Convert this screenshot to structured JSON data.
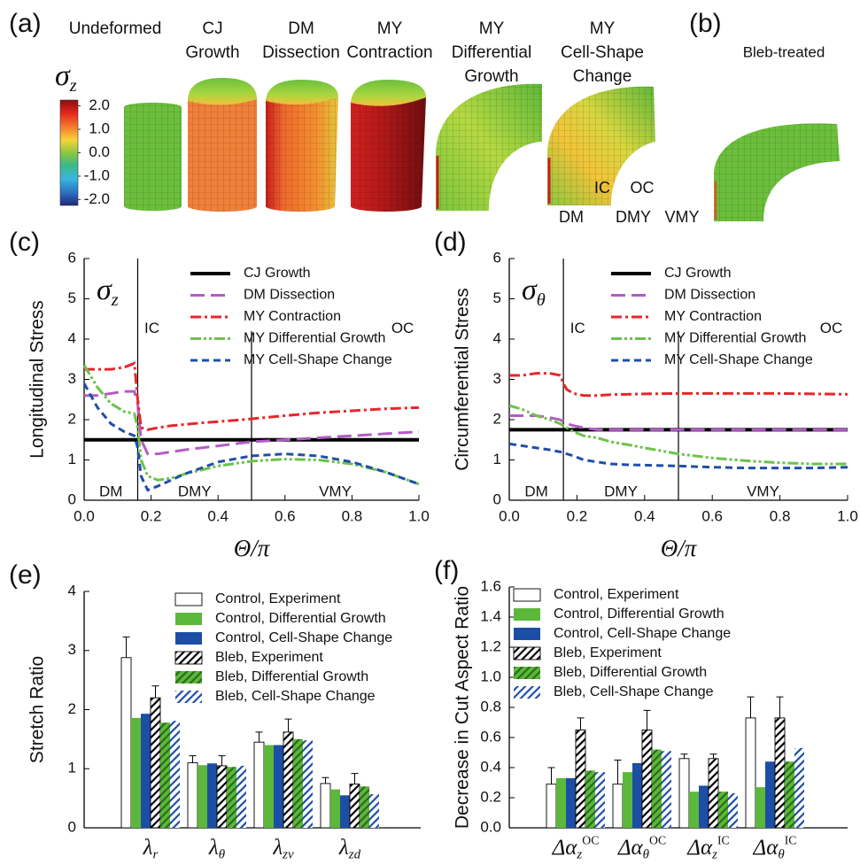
{
  "panel_a": {
    "label": "(a)",
    "columns": [
      {
        "lines": [
          "Undeformed"
        ],
        "color": "#111111"
      },
      {
        "lines": [
          "CJ",
          "Growth"
        ],
        "color": "#111111"
      },
      {
        "lines": [
          "DM",
          "Dissection"
        ],
        "color": "#b25cc4"
      },
      {
        "lines": [
          "MY",
          "Contraction"
        ],
        "color": "#e8262a"
      },
      {
        "lines": [
          "MY",
          "Differential",
          "Growth"
        ],
        "color": "#6cc24a"
      },
      {
        "lines": [
          "MY",
          "Cell-Shape",
          "Change"
        ],
        "color": "#1f4fa8"
      }
    ],
    "colorbar": {
      "symbol": {
        "base": "σ",
        "sub": "z"
      },
      "limits": [
        -2.25,
        2.25
      ],
      "ticks": [
        {
          "value": 2,
          "label": "2.0"
        },
        {
          "value": 1,
          "label": "1.0"
        },
        {
          "value": 0,
          "label": "0.0"
        },
        {
          "value": -1,
          "label": "-1.0"
        },
        {
          "value": -2,
          "label": "-2.0"
        }
      ]
    },
    "annotations": [
      "IC",
      "OC",
      "DM",
      "DMY",
      "VMY"
    ]
  },
  "panel_b": {
    "label": "(b)",
    "title": "Bleb-treated"
  },
  "chart_data": [
    {
      "type": "line",
      "panel_label": "(c)",
      "symbol": {
        "base": "σ",
        "sub": "z"
      },
      "y_label": "Longitudinal Stress",
      "x_label": "Θ/π",
      "xlim": [
        0,
        1
      ],
      "ylim": [
        0,
        6
      ],
      "xticks": [
        {
          "value": 0,
          "label": "0.0"
        },
        {
          "value": 0.2,
          "label": "0.2"
        },
        {
          "value": 0.4,
          "label": "0.4"
        },
        {
          "value": 0.6,
          "label": "0.6"
        },
        {
          "value": 0.8,
          "label": "0.8"
        },
        {
          "value": 1,
          "label": "1.0"
        }
      ],
      "yticks": [
        0,
        1,
        2,
        3,
        4,
        5,
        6
      ],
      "dividers": [
        0.16,
        0.5
      ],
      "annotations": [
        "IC",
        "OC",
        "DM",
        "DMY",
        "VMY"
      ],
      "x": [
        0,
        0.04,
        0.08,
        0.12,
        0.15,
        0.16,
        0.17,
        0.19,
        0.22,
        0.26,
        0.3,
        0.35,
        0.4,
        0.5,
        0.6,
        0.7,
        0.8,
        0.9,
        1.0
      ],
      "series": [
        {
          "name": "CJ Growth",
          "color": "#000000",
          "values": [
            1.5,
            1.5,
            1.5,
            1.5,
            1.5,
            1.5,
            1.5,
            1.5,
            1.5,
            1.5,
            1.5,
            1.5,
            1.5,
            1.5,
            1.5,
            1.5,
            1.5,
            1.5,
            1.5
          ]
        },
        {
          "name": "DM Dissection",
          "color": "#b25cc4",
          "values": [
            2.6,
            2.6,
            2.65,
            2.7,
            2.7,
            2.4,
            1.5,
            1.15,
            1.15,
            1.2,
            1.25,
            1.3,
            1.35,
            1.45,
            1.5,
            1.55,
            1.6,
            1.65,
            1.7
          ]
        },
        {
          "name": "MY Contraction",
          "color": "#e8262a",
          "values": [
            3.25,
            3.25,
            3.25,
            3.3,
            3.4,
            2.5,
            1.8,
            1.75,
            1.8,
            1.85,
            1.88,
            1.92,
            1.95,
            2.02,
            2.1,
            2.17,
            2.22,
            2.27,
            2.3
          ]
        },
        {
          "name": "MY Differential Growth",
          "color": "#6cc24a",
          "values": [
            3.35,
            2.8,
            2.4,
            2.2,
            2.15,
            1.8,
            1.0,
            0.6,
            0.5,
            0.55,
            0.65,
            0.75,
            0.85,
            0.97,
            1.02,
            1.0,
            0.9,
            0.7,
            0.4
          ]
        },
        {
          "name": "MY Cell-Shape Change",
          "color": "#1f4fa8",
          "values": [
            2.9,
            2.3,
            1.9,
            1.7,
            1.6,
            1.3,
            0.6,
            0.25,
            0.35,
            0.5,
            0.65,
            0.8,
            0.95,
            1.1,
            1.15,
            1.1,
            0.95,
            0.7,
            0.4
          ]
        }
      ]
    },
    {
      "type": "line",
      "panel_label": "(d)",
      "symbol": {
        "base": "σ",
        "sub": "θ"
      },
      "y_label": "Circumferential Stress",
      "x_label": "Θ/π",
      "xlim": [
        0,
        1
      ],
      "ylim": [
        0,
        6
      ],
      "xticks": [
        {
          "value": 0,
          "label": "0.0"
        },
        {
          "value": 0.2,
          "label": "0.2"
        },
        {
          "value": 0.4,
          "label": "0.4"
        },
        {
          "value": 0.6,
          "label": "0.6"
        },
        {
          "value": 0.8,
          "label": "0.8"
        },
        {
          "value": 1,
          "label": "1.0"
        }
      ],
      "yticks": [
        0,
        1,
        2,
        3,
        4,
        5,
        6
      ],
      "dividers": [
        0.16,
        0.5
      ],
      "annotations": [
        "IC",
        "OC",
        "DM",
        "DMY",
        "VMY"
      ],
      "x": [
        0,
        0.04,
        0.08,
        0.12,
        0.15,
        0.16,
        0.17,
        0.19,
        0.22,
        0.26,
        0.3,
        0.35,
        0.4,
        0.5,
        0.6,
        0.7,
        0.8,
        0.9,
        1.0
      ],
      "series": [
        {
          "name": "CJ Growth",
          "color": "#000000",
          "values": [
            1.75,
            1.75,
            1.75,
            1.75,
            1.75,
            1.75,
            1.75,
            1.75,
            1.75,
            1.75,
            1.75,
            1.75,
            1.75,
            1.75,
            1.75,
            1.75,
            1.75,
            1.75,
            1.75
          ]
        },
        {
          "name": "DM Dissection",
          "color": "#b25cc4",
          "values": [
            2.1,
            2.1,
            2.1,
            2.05,
            2.0,
            1.95,
            1.9,
            1.85,
            1.8,
            1.75,
            1.75,
            1.75,
            1.75,
            1.75,
            1.75,
            1.75,
            1.75,
            1.75,
            1.75
          ]
        },
        {
          "name": "MY Contraction",
          "color": "#e8262a",
          "values": [
            3.1,
            3.1,
            3.15,
            3.15,
            3.1,
            2.9,
            2.75,
            2.65,
            2.6,
            2.6,
            2.62,
            2.63,
            2.64,
            2.65,
            2.65,
            2.65,
            2.65,
            2.64,
            2.63
          ]
        },
        {
          "name": "MY Differential Growth",
          "color": "#6cc24a",
          "values": [
            2.35,
            2.25,
            2.1,
            2.0,
            1.9,
            1.85,
            1.8,
            1.7,
            1.6,
            1.55,
            1.45,
            1.38,
            1.3,
            1.15,
            1.05,
            0.98,
            0.93,
            0.9,
            0.9
          ]
        },
        {
          "name": "MY Cell-Shape Change",
          "color": "#1f4fa8",
          "values": [
            1.4,
            1.35,
            1.3,
            1.25,
            1.2,
            1.2,
            1.15,
            1.1,
            1.0,
            0.95,
            0.9,
            0.88,
            0.87,
            0.85,
            0.82,
            0.8,
            0.8,
            0.8,
            0.82
          ]
        }
      ]
    },
    {
      "type": "bar",
      "panel_label": "(e)",
      "y_label": "Stretch Ratio",
      "ylim": [
        0,
        4
      ],
      "yticks": [
        0,
        1,
        2,
        3,
        4
      ],
      "categories": [
        {
          "base": "λ",
          "sub": "r"
        },
        {
          "base": "λ",
          "sub": "θ"
        },
        {
          "base": "λ",
          "sub": "zv"
        },
        {
          "base": "λ",
          "sub": "zd"
        }
      ],
      "series": [
        {
          "name": "Control, Experiment",
          "color": "#ffffff",
          "values": [
            2.88,
            1.1,
            1.45,
            0.75
          ],
          "errors": [
            0.35,
            0.12,
            0.17,
            0.1
          ]
        },
        {
          "name": "Control, Differential Growth",
          "color": "#5cb83a",
          "values": [
            1.86,
            1.06,
            1.4,
            0.65
          ]
        },
        {
          "name": "Control, Cell-Shape Change",
          "color": "#1d4ea6",
          "values": [
            1.93,
            1.09,
            1.4,
            0.55
          ]
        },
        {
          "name": "Bleb, Experiment",
          "color": "#ffffff",
          "hatch": "#000000",
          "values": [
            2.2,
            1.05,
            1.62,
            0.74
          ],
          "errors": [
            0.2,
            0.17,
            0.22,
            0.18
          ]
        },
        {
          "name": "Bleb, Differential Growth",
          "color": "#5cb83a",
          "hatch": "#2a6a1c",
          "values": [
            1.78,
            1.03,
            1.5,
            0.7
          ]
        },
        {
          "name": "Bleb, Cell-Shape Change",
          "color": "#ffffff",
          "hatch": "#1d4ea6",
          "values": [
            1.81,
            1.05,
            1.48,
            0.57
          ]
        }
      ]
    },
    {
      "type": "bar",
      "panel_label": "(f)",
      "y_label": "Decrease in Cut Aspect Ratio",
      "ylim": [
        0,
        1.6
      ],
      "yticks": [
        {
          "value": 0,
          "label": "0.0"
        },
        {
          "value": 0.2,
          "label": "0.2"
        },
        {
          "value": 0.4,
          "label": "0.4"
        },
        {
          "value": 0.6,
          "label": "0.6"
        },
        {
          "value": 0.8,
          "label": "0.8"
        },
        {
          "value": 1.0,
          "label": "1.0"
        },
        {
          "value": 1.2,
          "label": "1.2"
        },
        {
          "value": 1.4,
          "label": "1.4"
        },
        {
          "value": 1.6,
          "label": "1.6"
        }
      ],
      "categories": [
        {
          "base": "Δα",
          "sub": "z",
          "sup": "OC"
        },
        {
          "base": "Δα",
          "sub": "θ",
          "sup": "OC"
        },
        {
          "base": "Δα",
          "sub": "z",
          "sup": "IC"
        },
        {
          "base": "Δα",
          "sub": "θ",
          "sup": "IC"
        }
      ],
      "series": [
        {
          "name": "Control, Experiment",
          "color": "#ffffff",
          "values": [
            0.29,
            0.29,
            0.46,
            0.73
          ],
          "errors": [
            0.11,
            0.16,
            0.03,
            0.14
          ]
        },
        {
          "name": "Control, Differential Growth",
          "color": "#5cb83a",
          "values": [
            0.33,
            0.37,
            0.24,
            0.27
          ]
        },
        {
          "name": "Control, Cell-Shape Change",
          "color": "#1d4ea6",
          "values": [
            0.33,
            0.43,
            0.28,
            0.44
          ]
        },
        {
          "name": "Bleb, Experiment",
          "color": "#ffffff",
          "hatch": "#000000",
          "values": [
            0.65,
            0.65,
            0.46,
            0.73
          ],
          "errors": [
            0.08,
            0.13,
            0.03,
            0.14
          ]
        },
        {
          "name": "Bleb, Differential Growth",
          "color": "#5cb83a",
          "hatch": "#2a6a1c",
          "values": [
            0.38,
            0.52,
            0.24,
            0.44
          ]
        },
        {
          "name": "Bleb, Cell-Shape Change",
          "color": "#ffffff",
          "hatch": "#1d4ea6",
          "values": [
            0.37,
            0.51,
            0.23,
            0.53
          ]
        }
      ]
    }
  ]
}
